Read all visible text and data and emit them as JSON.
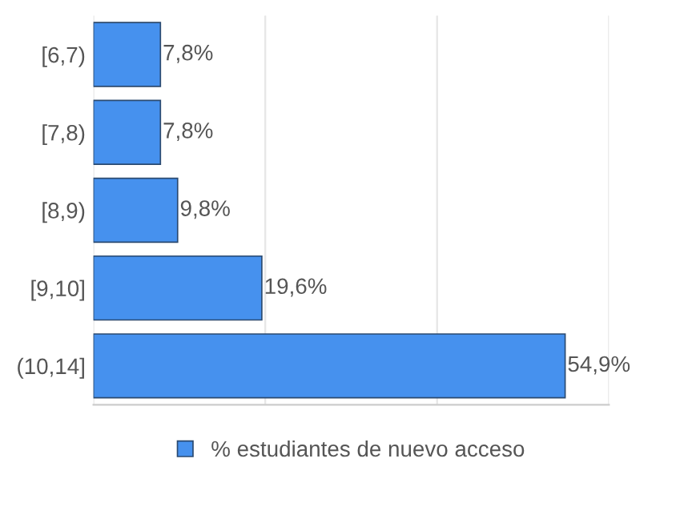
{
  "chart_data": {
    "type": "bar",
    "orientation": "horizontal",
    "categories": [
      "[6,7)",
      "[7,8)",
      "[8,9)",
      "[9,10]",
      "(10,14]"
    ],
    "series": [
      {
        "name": "% estudiantes de nuevo acceso",
        "color": "#4691ee",
        "values": [
          7.8,
          7.8,
          9.8,
          19.6,
          54.9
        ],
        "value_labels": [
          "7,8%",
          "7,8%",
          "9,8%",
          "19,6%",
          "54,9%"
        ]
      }
    ],
    "xlim": [
      0,
      60
    ],
    "xticks": [
      {
        "value": 0,
        "label": null
      },
      {
        "value": 20,
        "label": null
      },
      {
        "value": 40,
        "label": null
      },
      {
        "value": 60,
        "label": null
      }
    ],
    "tick_labels": "y",
    "grid": "x",
    "legend": "bottom"
  }
}
